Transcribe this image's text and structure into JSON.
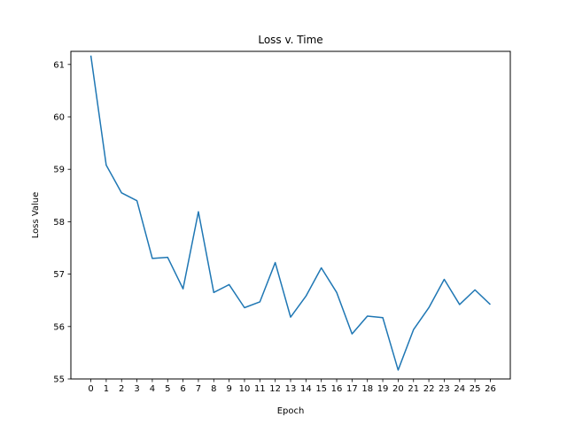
{
  "chart_data": {
    "type": "line",
    "title": "Loss v. Time",
    "xlabel": "Epoch",
    "ylabel": "Loss Value",
    "x": [
      0,
      1,
      2,
      3,
      4,
      5,
      6,
      7,
      8,
      9,
      10,
      11,
      12,
      13,
      14,
      15,
      16,
      17,
      18,
      19,
      20,
      21,
      22,
      23,
      24,
      25,
      26
    ],
    "series": [
      {
        "name": "",
        "color": "#1f77b4",
        "values": [
          61.17,
          59.08,
          58.55,
          58.4,
          57.3,
          57.32,
          56.72,
          58.19,
          56.65,
          56.8,
          56.36,
          56.47,
          57.22,
          56.18,
          56.58,
          57.12,
          56.65,
          55.86,
          56.2,
          56.17,
          55.17,
          55.94,
          56.36,
          56.9,
          56.42,
          56.7,
          56.42
        ]
      }
    ],
    "xlim": [
      -1.3,
      27.3
    ],
    "ylim": [
      55,
      61.25
    ],
    "yticks": [
      55,
      56,
      57,
      58,
      59,
      60,
      61
    ],
    "grid": false
  }
}
